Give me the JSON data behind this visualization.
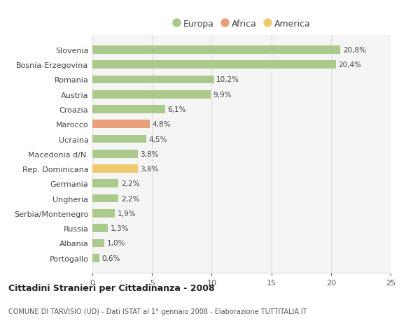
{
  "categories": [
    "Portogallo",
    "Albania",
    "Russia",
    "Serbia/Montenegro",
    "Ungheria",
    "Germania",
    "Rep. Dominicana",
    "Macedonia d/N.",
    "Ucraina",
    "Marocco",
    "Croazia",
    "Austria",
    "Romania",
    "Bosnia-Erzegovina",
    "Slovenia"
  ],
  "values": [
    0.6,
    1.0,
    1.3,
    1.9,
    2.2,
    2.2,
    3.8,
    3.8,
    4.5,
    4.8,
    6.1,
    9.9,
    10.2,
    20.4,
    20.8
  ],
  "labels": [
    "0,6%",
    "1,0%",
    "1,3%",
    "1,9%",
    "2,2%",
    "2,2%",
    "3,8%",
    "3,8%",
    "4,5%",
    "4,8%",
    "6,1%",
    "9,9%",
    "10,2%",
    "20,4%",
    "20,8%"
  ],
  "colors": [
    "#aac98a",
    "#aac98a",
    "#aac98a",
    "#aac98a",
    "#aac98a",
    "#aac98a",
    "#f0ca6e",
    "#aac98a",
    "#aac98a",
    "#e8a07a",
    "#aac98a",
    "#aac98a",
    "#aac98a",
    "#aac98a",
    "#aac98a"
  ],
  "legend_items": [
    {
      "label": "Europa",
      "color": "#aac98a"
    },
    {
      "label": "Africa",
      "color": "#e8a07a"
    },
    {
      "label": "America",
      "color": "#f0ca6e"
    }
  ],
  "title": "Cittadini Stranieri per Cittadinanza - 2008",
  "subtitle": "COMUNE DI TARVISIO (UD) - Dati ISTAT al 1° gennaio 2008 - Elaborazione TUTTITALIA.IT",
  "xlim": [
    0,
    25
  ],
  "xticks": [
    0,
    5,
    10,
    15,
    20,
    25
  ],
  "background_color": "#ffffff",
  "plot_bg_color": "#f5f5f5",
  "grid_color": "#dddddd",
  "bar_height": 0.55
}
